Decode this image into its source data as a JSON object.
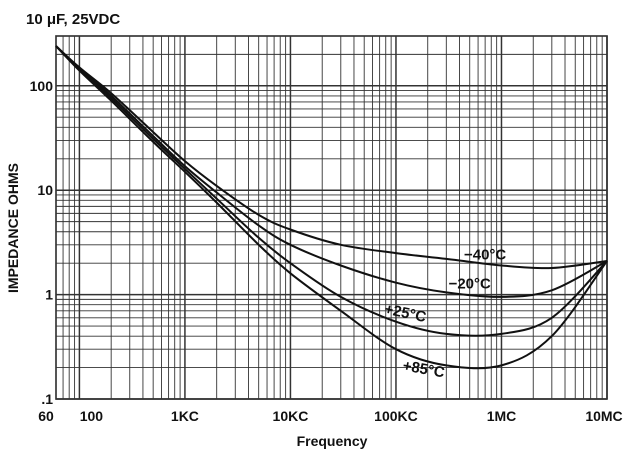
{
  "chart_data": {
    "type": "line",
    "title": "10 μF, 25VDC",
    "xlabel": "Frequency",
    "ylabel": "IMPEDANCE OHMS",
    "xscale": "log",
    "yscale": "log",
    "xlim": [
      60,
      10000000
    ],
    "ylim": [
      0.1,
      300
    ],
    "grid": true,
    "x_ticks": [
      {
        "value": 60,
        "label": "60"
      },
      {
        "value": 100,
        "label": "100"
      },
      {
        "value": 1000,
        "label": "1KC"
      },
      {
        "value": 10000,
        "label": "10KC"
      },
      {
        "value": 100000,
        "label": "100KC"
      },
      {
        "value": 1000000,
        "label": "1MC"
      },
      {
        "value": 10000000,
        "label": "10MC"
      }
    ],
    "y_ticks": [
      {
        "value": 100,
        "label": "100"
      },
      {
        "value": 10,
        "label": "10"
      },
      {
        "value": 1,
        "label": "1"
      },
      {
        "value": 0.1,
        "label": ".1"
      }
    ],
    "series": [
      {
        "name": "−40°C",
        "x": [
          60,
          100,
          200,
          500,
          1000,
          2000,
          5000,
          10000,
          30000,
          100000,
          300000,
          1000000,
          3000000,
          10000000
        ],
        "y": [
          240,
          150,
          85,
          36,
          19,
          11,
          5.8,
          4.2,
          3.0,
          2.5,
          2.2,
          1.9,
          1.8,
          2.1
        ]
      },
      {
        "name": "−20°C",
        "x": [
          60,
          100,
          200,
          500,
          1000,
          2000,
          5000,
          10000,
          30000,
          100000,
          300000,
          1000000,
          3000000,
          10000000
        ],
        "y": [
          240,
          148,
          80,
          33,
          17,
          9.5,
          4.6,
          3.0,
          1.9,
          1.3,
          1.05,
          0.95,
          1.1,
          2.1
        ]
      },
      {
        "name": "+25°C",
        "x": [
          60,
          100,
          200,
          500,
          1000,
          2000,
          5000,
          10000,
          30000,
          100000,
          300000,
          1000000,
          3000000,
          10000000
        ],
        "y": [
          240,
          145,
          76,
          31,
          16,
          8.3,
          3.5,
          2.0,
          0.95,
          0.55,
          0.42,
          0.42,
          0.6,
          2.1
        ]
      },
      {
        "name": "+85°C",
        "x": [
          60,
          100,
          200,
          500,
          1000,
          2000,
          5000,
          10000,
          30000,
          100000,
          300000,
          1000000,
          3000000,
          10000000
        ],
        "y": [
          240,
          140,
          72,
          29,
          15,
          7.6,
          3.0,
          1.6,
          0.7,
          0.3,
          0.21,
          0.21,
          0.4,
          2.1
        ]
      }
    ]
  }
}
